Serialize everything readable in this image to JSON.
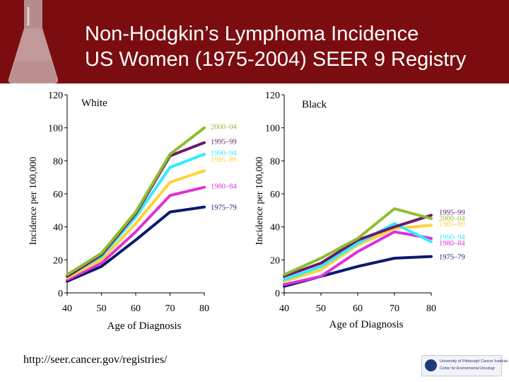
{
  "title_line1": "Non-Hodgkin’s Lymphoma Incidence",
  "title_line2": "US Women (1975-2004) SEER 9 Registry",
  "source_url": "http://seer.cancer.gov/registries/",
  "logo": {
    "line1": "University of Pittsburgh Cancer Institute",
    "line2": "Center for Environmental Oncology"
  },
  "colors": {
    "header_bg": "#7b0d10",
    "1975-79": "#0a1a6e",
    "1980-84": "#e030d8",
    "1985-89": "#ffd23a",
    "1990-94": "#33eaff",
    "1995-99": "#6a1a6a",
    "2000-04": "#8fbc2e"
  },
  "chart_data": [
    {
      "type": "line",
      "title": "White",
      "xlabel": "Age of Diagnosis",
      "ylabel": "Incidence per 100,000",
      "x": [
        40,
        50,
        60,
        70,
        80
      ],
      "xlim": [
        40,
        80
      ],
      "ylim": [
        0,
        120
      ],
      "xticks": [
        40,
        50,
        60,
        70,
        80
      ],
      "yticks": [
        0,
        20,
        40,
        60,
        80,
        100,
        120
      ],
      "x_points": [
        40,
        50,
        60,
        70,
        80
      ],
      "series": [
        {
          "name": "1975-79",
          "values": [
            7,
            16,
            32,
            49,
            52
          ]
        },
        {
          "name": "1980-84",
          "values": [
            8,
            18,
            37,
            59,
            64
          ]
        },
        {
          "name": "1985-89",
          "values": [
            9,
            20,
            42,
            67,
            74
          ]
        },
        {
          "name": "1990-94",
          "values": [
            10,
            22,
            46,
            76,
            84
          ]
        },
        {
          "name": "1995-99",
          "values": [
            10,
            23,
            48,
            83,
            91
          ]
        },
        {
          "name": "2000-04",
          "values": [
            11,
            24,
            49,
            84,
            100
          ]
        }
      ],
      "labels": [
        {
          "name": "2000-04",
          "text": "2000–04",
          "at": 101
        },
        {
          "name": "1995-99",
          "text": "1995–99",
          "at": 92
        },
        {
          "name": "1990-94",
          "text": "1990–94",
          "at": 85
        },
        {
          "name": "1985-89",
          "text": "1985–89",
          "at": 81
        },
        {
          "name": "1980-84",
          "text": "1980–84",
          "at": 65
        },
        {
          "name": "1975-79",
          "text": "1975–79",
          "at": 52
        }
      ]
    },
    {
      "type": "line",
      "title": "Black",
      "xlabel": "Age of Diagnosis",
      "ylabel": "Incidence per 100,000",
      "x": [
        40,
        50,
        60,
        70,
        80
      ],
      "xlim": [
        40,
        80
      ],
      "ylim": [
        0,
        120
      ],
      "xticks": [
        40,
        50,
        60,
        70,
        80
      ],
      "yticks": [
        0,
        20,
        40,
        60,
        80,
        100,
        120
      ],
      "x_points": [
        40,
        50,
        60,
        70,
        80
      ],
      "series": [
        {
          "name": "1975-79",
          "values": [
            4,
            10,
            16,
            21,
            22
          ]
        },
        {
          "name": "1980-84",
          "values": [
            5,
            10,
            25,
            37,
            33
          ]
        },
        {
          "name": "1985-89",
          "values": [
            7,
            14,
            29,
            39,
            41
          ]
        },
        {
          "name": "1990-94",
          "values": [
            8,
            16,
            30,
            42,
            31
          ]
        },
        {
          "name": "1995-99",
          "values": [
            10,
            18,
            32,
            40,
            47
          ]
        },
        {
          "name": "2000-04",
          "values": [
            11,
            21,
            33,
            51,
            45
          ]
        }
      ],
      "labels": [
        {
          "name": "1995-99",
          "text": "1995–99",
          "at": 49
        },
        {
          "name": "2000-04",
          "text": "2000–04",
          "at": 45.5
        },
        {
          "name": "1985-89",
          "text": "1985–89",
          "at": 42
        },
        {
          "name": "1990-94",
          "text": "1990–94",
          "at": 34
        },
        {
          "name": "1980-84",
          "text": "1980–84",
          "at": 30.5
        },
        {
          "name": "1975-79",
          "text": "1975–79",
          "at": 22
        }
      ]
    }
  ]
}
